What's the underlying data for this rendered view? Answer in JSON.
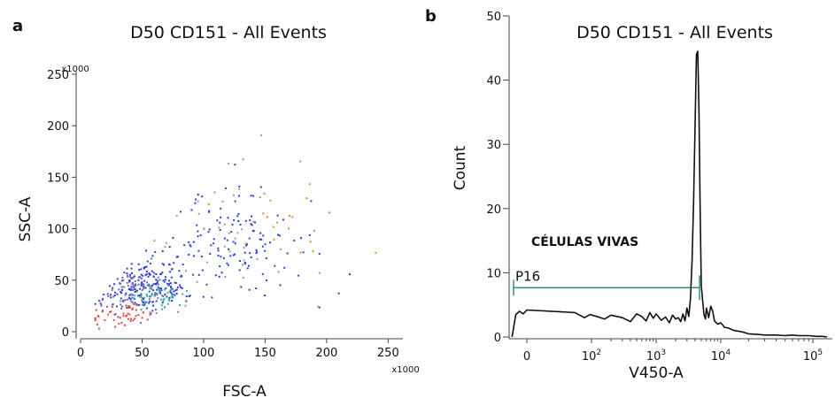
{
  "chart_data": [
    {
      "type": "scatter",
      "panel": "a",
      "title": "D50 CD151 - All Events",
      "xlabel": "FSC-A",
      "ylabel": "SSC-A",
      "x_multiplier": "x1000",
      "y_multiplier": "x1000",
      "xlim": [
        0,
        262
      ],
      "ylim": [
        0,
        262
      ],
      "xticks": [
        0,
        50,
        100,
        150,
        200,
        250
      ],
      "yticks": [
        0,
        50,
        100,
        150,
        200,
        250
      ],
      "grid": false,
      "legend": "none",
      "colors": [
        "#2a3fd6",
        "#7a63b8",
        "#3aa89a",
        "#d84a3a",
        "#e08a2a",
        "#999999"
      ],
      "point_groups": [
        {
          "color": "#2a3fd6",
          "center": [
            55,
            45
          ],
          "spread": [
            30,
            18
          ],
          "n": 170
        },
        {
          "color": "#2a3fd6",
          "center": [
            120,
            85
          ],
          "spread": [
            55,
            40
          ],
          "n": 150
        },
        {
          "color": "#7a63b8",
          "center": [
            40,
            35
          ],
          "spread": [
            25,
            20
          ],
          "n": 90
        },
        {
          "color": "#3aa89a",
          "center": [
            60,
            35
          ],
          "spread": [
            18,
            10
          ],
          "n": 60
        },
        {
          "color": "#d84a3a",
          "center": [
            35,
            15
          ],
          "spread": [
            25,
            10
          ],
          "n": 45
        },
        {
          "color": "#e08a2a",
          "center": [
            160,
            110
          ],
          "spread": [
            55,
            50
          ],
          "n": 25
        },
        {
          "color": "#999999",
          "center": [
            110,
            90
          ],
          "spread": [
            70,
            55
          ],
          "n": 35
        }
      ]
    },
    {
      "type": "line",
      "panel": "b",
      "title": "D50 CD151 - All Events",
      "xlabel": "V450-A",
      "ylabel": "Count",
      "x_scale": "biexponential",
      "ylim": [
        0,
        50
      ],
      "yticks": [
        0,
        10,
        20,
        30,
        40,
        50
      ],
      "xticks": [
        {
          "base": "0",
          "exp": ""
        },
        {
          "base": "10",
          "exp": "2"
        },
        {
          "base": "10",
          "exp": "3"
        },
        {
          "base": "10",
          "exp": "4"
        },
        {
          "base": "10",
          "exp": "5"
        }
      ],
      "grid": false,
      "legend": "none",
      "line_color": "#111111",
      "gate_color": "#2e8f7e",
      "gate": {
        "label": "P16",
        "range": [
          "-100",
          "3000"
        ],
        "level": 8.5
      },
      "annotation": "CÉLULAS VIVAS",
      "series": [
        {
          "x": [
            -200,
            -150,
            -100,
            -50,
            0,
            30,
            60,
            90,
            120,
            160,
            200,
            300,
            400,
            500,
            600,
            700,
            800,
            900,
            1000,
            1200,
            1400,
            1600,
            1800,
            2000,
            2200,
            2400,
            2600,
            2800,
            3000,
            3200,
            3400,
            3600,
            3800,
            4000,
            4200,
            4400,
            4600,
            4800,
            5000,
            5200,
            5500,
            5800,
            6000,
            6500,
            7000,
            7500,
            8000,
            9000,
            10000,
            11000,
            12000,
            14000,
            17000,
            20000,
            25000,
            30000,
            40000,
            50000,
            60000,
            70000,
            90000,
            120000,
            160000,
            200000
          ],
          "y": [
            0,
            3.5,
            4.0,
            3.6,
            4.2,
            3.8,
            3.0,
            3.5,
            3.2,
            2.8,
            3.4,
            3.0,
            2.4,
            3.6,
            3.2,
            2.5,
            3.8,
            2.9,
            3.6,
            2.6,
            3.1,
            2.2,
            3.4,
            2.8,
            3.0,
            2.4,
            3.6,
            2.5,
            4.5,
            3.2,
            6.0,
            12.0,
            21.0,
            33.0,
            44.0,
            44.5,
            35.0,
            20.0,
            8.0,
            6.0,
            3.5,
            2.8,
            4.5,
            3.0,
            4.8,
            4.0,
            2.5,
            2.0,
            2.2,
            1.5,
            1.4,
            1.0,
            0.8,
            0.5,
            0.4,
            0.3,
            0.3,
            0.2,
            0.3,
            0.2,
            0.2,
            0.1,
            0.1,
            0
          ]
        }
      ]
    }
  ]
}
